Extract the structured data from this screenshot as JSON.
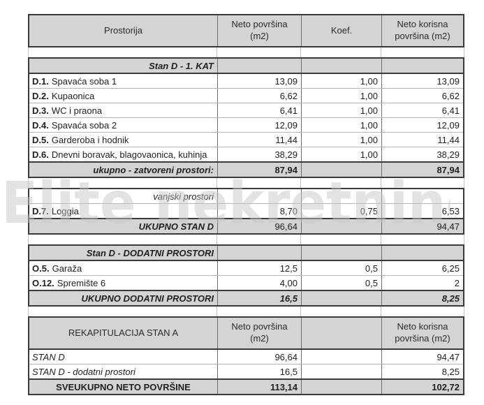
{
  "watermark": {
    "text": "Elite nekretnine"
  },
  "columns": {
    "prostorija": "Prostorija",
    "neto": "Neto površina\n(m2)",
    "koef": "Koef.",
    "neto_korisna": "Neto korisna\npovršina (m2)"
  },
  "stan_d_kat1": {
    "title": "Stan D - 1. KAT",
    "rows": [
      {
        "code": "D.1.",
        "name": "Spavaća soba 1",
        "neto": "13,09",
        "koef": "1,00",
        "korisna": "13,09"
      },
      {
        "code": "D.2.",
        "name": "Kupaonica",
        "neto": "6,62",
        "koef": "1,00",
        "korisna": "6,62"
      },
      {
        "code": "D.3.",
        "name": "WC i praona",
        "neto": "6,41",
        "koef": "1,00",
        "korisna": "6,41"
      },
      {
        "code": "D.4.",
        "name": "Spavaća soba 2",
        "neto": "12,09",
        "koef": "1,00",
        "korisna": "12,09"
      },
      {
        "code": "D.5.",
        "name": "Garderoba i hodnik",
        "neto": "11,44",
        "koef": "1,00",
        "korisna": "11,44"
      },
      {
        "code": "D.6.",
        "name": "Dnevni boravak, blagovaonica, kuhinja",
        "neto": "38,29",
        "koef": "1,00",
        "korisna": "38,29"
      }
    ],
    "total": {
      "label": "ukupno - zatvoreni prostori:",
      "neto": "87,94",
      "korisna": "87,94"
    }
  },
  "vanjski": {
    "title": "vanjski prostori",
    "rows": [
      {
        "code": "D.7.",
        "name": "Loggia",
        "neto": "8,70",
        "koef": "0,75",
        "korisna": "6,53"
      }
    ],
    "total": {
      "label": "UKUPNO STAN D",
      "neto": "96,64",
      "korisna": "94,47"
    }
  },
  "dodatni": {
    "title": "Stan D - DODATNI PROSTORI",
    "rows": [
      {
        "code": "O.5.",
        "name": "Garaža",
        "neto": "12,5",
        "koef": "0,5",
        "korisna": "6,25"
      },
      {
        "code": "O.12.",
        "name": "Spremište 6",
        "neto": "4,00",
        "koef": "0,5",
        "korisna": "2"
      }
    ],
    "total": {
      "label": "UKUPNO DODATNI PROSTORI",
      "neto": "16,5",
      "korisna": "8,25"
    }
  },
  "rekapitulacija": {
    "title": "REKAPITULACIJA STAN A",
    "col_neto": "Neto površina\n(m2)",
    "col_korisna": "Neto korisna\npovršina (m2)",
    "rows": [
      {
        "name": "STAN D",
        "neto": "96,64",
        "korisna": "94,47"
      },
      {
        "name": "STAN D - dodatni prostori",
        "neto": "16,5",
        "korisna": "8,25"
      }
    ],
    "total": {
      "label": "SVEUKUPNO NETO POVRŠINE",
      "neto": "113,14",
      "korisna": "102,72"
    }
  }
}
